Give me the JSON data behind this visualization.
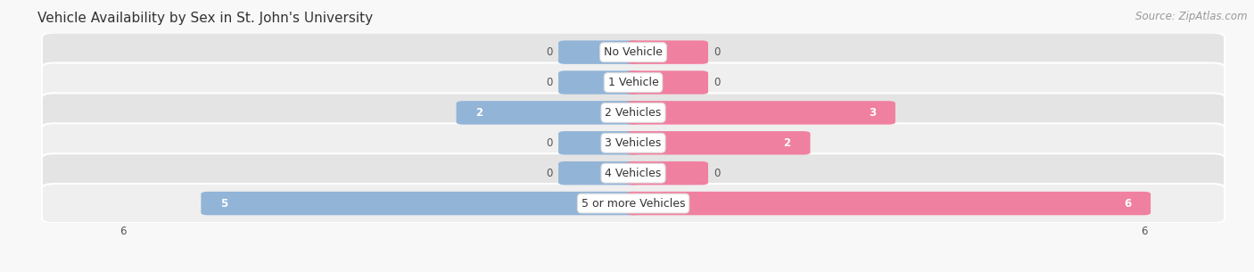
{
  "title": "Vehicle Availability by Sex in St. John's University",
  "source": "Source: ZipAtlas.com",
  "categories": [
    "No Vehicle",
    "1 Vehicle",
    "2 Vehicles",
    "3 Vehicles",
    "4 Vehicles",
    "5 or more Vehicles"
  ],
  "male_values": [
    0,
    0,
    2,
    0,
    0,
    5
  ],
  "female_values": [
    0,
    0,
    3,
    2,
    0,
    6
  ],
  "max_value": 6,
  "male_color": "#92b4d7",
  "female_color": "#f080a0",
  "row_bg_color": "#e4e4e4",
  "row_bg_color_alt": "#efefef",
  "background_color": "#f8f8f8",
  "bar_height": 0.62,
  "title_fontsize": 11,
  "source_fontsize": 8.5,
  "value_fontsize": 8.5,
  "axis_label_fontsize": 8.5,
  "category_fontsize": 9,
  "legend_fontsize": 9
}
